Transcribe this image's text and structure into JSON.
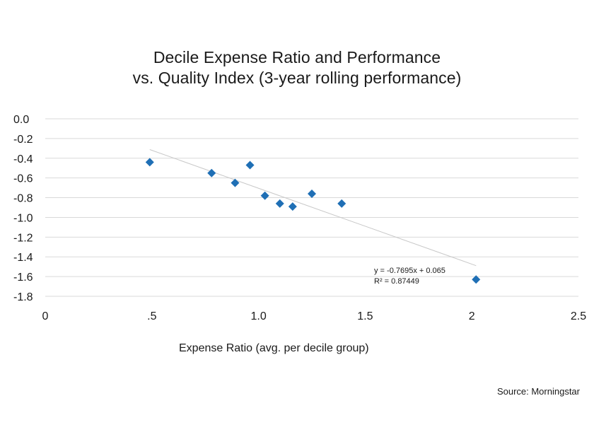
{
  "chart_data": {
    "type": "scatter",
    "title_line1": "Decile Expense  Ratio and Performance",
    "title_line2": "vs. Quality Index (3-year rolling performance)",
    "xlabel": "Expense Ratio (avg. per decile group)",
    "ylabel": "",
    "xlim": [
      0,
      2.5
    ],
    "ylim": [
      -1.8,
      0.0
    ],
    "x_ticks": [
      {
        "value": 0,
        "label": "0"
      },
      {
        "value": 0.5,
        "label": ".5"
      },
      {
        "value": 1.0,
        "label": "1.0"
      },
      {
        "value": 1.5,
        "label": "1.5"
      },
      {
        "value": 2.0,
        "label": "2"
      },
      {
        "value": 2.5,
        "label": "2.5"
      }
    ],
    "y_ticks": [
      {
        "value": 0.0,
        "label": "0.0"
      },
      {
        "value": -0.2,
        "label": "-0.2"
      },
      {
        "value": -0.4,
        "label": "-0.4"
      },
      {
        "value": -0.6,
        "label": "-0.6"
      },
      {
        "value": -0.8,
        "label": "-0.8"
      },
      {
        "value": -1.0,
        "label": "-1.0"
      },
      {
        "value": -1.2,
        "label": "-1.2"
      },
      {
        "value": -1.4,
        "label": "-1.4"
      },
      {
        "value": -1.6,
        "label": "-1.6"
      },
      {
        "value": -1.8,
        "label": "-1.8"
      }
    ],
    "grid": "horizontal",
    "marker_color": "#1f6fb5",
    "trendline_color": "#c8c8c8",
    "points": [
      {
        "x": 0.49,
        "y": -0.44
      },
      {
        "x": 0.78,
        "y": -0.55
      },
      {
        "x": 0.89,
        "y": -0.65
      },
      {
        "x": 0.96,
        "y": -0.47
      },
      {
        "x": 1.03,
        "y": -0.78
      },
      {
        "x": 1.1,
        "y": -0.86
      },
      {
        "x": 1.16,
        "y": -0.89
      },
      {
        "x": 1.25,
        "y": -0.76
      },
      {
        "x": 1.39,
        "y": -0.86
      },
      {
        "x": 2.02,
        "y": -1.63
      }
    ],
    "trendline": {
      "slope": -0.7695,
      "intercept": 0.065,
      "x_range": [
        0.49,
        2.02
      ],
      "equation_label": "y = -0.7695x + 0.065",
      "r2_label": "R² = 0.87449"
    },
    "source": "Source: Morningstar"
  }
}
